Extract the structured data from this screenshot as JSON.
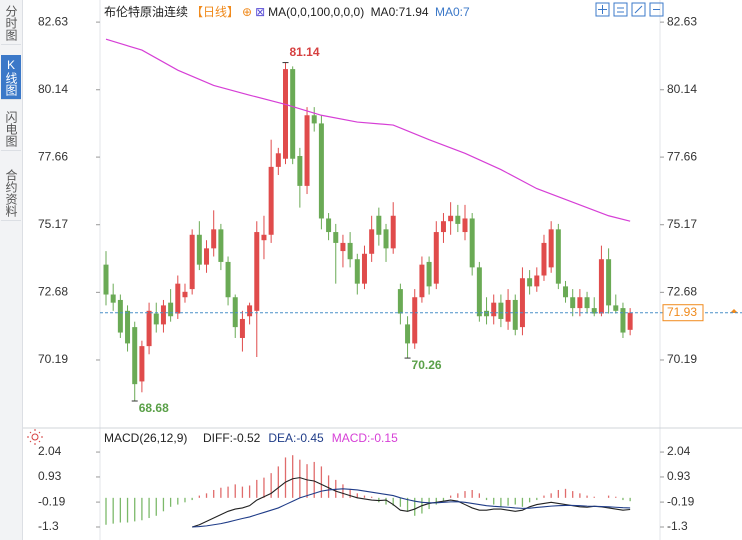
{
  "header": {
    "title": "布伦特原油连续",
    "period": "【日线】",
    "indicator": "MA(0,0,100,0,0,0)",
    "ma_value": "MA0:71.94",
    "ma_extra": "MA0:7"
  },
  "sidebar": {
    "tabs": [
      "分时图",
      "K线图",
      "闪电图",
      "合约资料"
    ]
  },
  "chart_data": [
    {
      "type": "candlestick",
      "up_color": "#e04b4b",
      "down_color": "#6aaa55",
      "open": [
        73.7,
        72.6,
        72.4,
        72.0,
        71.4,
        69.4,
        70.7,
        71.9,
        71.5,
        72.3,
        71.9,
        72.5,
        72.8,
        74.8,
        73.7,
        74.3,
        75.0,
        73.8,
        72.5,
        71.0,
        71.8,
        72.0,
        74.6,
        74.8,
        77.3,
        77.6,
        80.9,
        77.7,
        76.6,
        79.2,
        78.9,
        75.4,
        74.9,
        74.2,
        74.5,
        73.9,
        73.0,
        74.1,
        75.5,
        75.0,
        74.3,
        72.8,
        71.5,
        70.8,
        72.5,
        73.8,
        73.0,
        74.9,
        75.3,
        75.5,
        74.9,
        75.4,
        73.6,
        72.0,
        71.8,
        72.3,
        71.6,
        72.4,
        71.4,
        73.2,
        72.9,
        73.3,
        73.6,
        75.0,
        72.9,
        72.5,
        72.1,
        72.5,
        72.1,
        71.9,
        73.9,
        72.2,
        72.1,
        71.3
      ],
      "high": [
        74.2,
        73.0,
        72.6,
        72.2,
        71.6,
        70.9,
        72.3,
        72.3,
        72.4,
        72.8,
        73.3,
        73.0,
        75.0,
        75.3,
        74.6,
        75.7,
        75.2,
        74.0,
        72.6,
        72.0,
        72.3,
        75.3,
        75.5,
        78.3,
        78.0,
        81.14,
        81.0,
        78.0,
        79.5,
        79.5,
        79.2,
        75.6,
        75.2,
        74.8,
        74.9,
        74.1,
        74.4,
        75.5,
        75.8,
        75.2,
        76.0,
        73.0,
        71.8,
        72.8,
        74.0,
        74.0,
        75.3,
        75.6,
        76.0,
        75.9,
        75.9,
        75.6,
        73.8,
        72.5,
        72.6,
        72.6,
        72.8,
        72.6,
        73.6,
        73.5,
        73.6,
        74.8,
        75.3,
        75.2,
        73.1,
        72.8,
        72.8,
        72.7,
        72.5,
        74.4,
        74.3,
        72.6,
        72.3,
        72.1
      ],
      "low": [
        72.2,
        72.0,
        71.0,
        70.5,
        68.68,
        69.0,
        70.4,
        71.2,
        71.2,
        71.6,
        71.7,
        72.3,
        72.6,
        73.5,
        73.4,
        74.0,
        73.5,
        72.2,
        71.0,
        70.5,
        71.5,
        70.3,
        73.9,
        74.5,
        77.0,
        77.4,
        77.4,
        75.8,
        76.3,
        78.6,
        75.0,
        74.6,
        73.0,
        73.6,
        73.6,
        72.6,
        72.8,
        73.8,
        74.4,
        73.8,
        74.1,
        71.5,
        70.26,
        70.6,
        72.3,
        72.6,
        72.8,
        74.5,
        74.8,
        74.9,
        74.6,
        73.3,
        71.6,
        71.5,
        71.5,
        71.4,
        71.3,
        71.1,
        71.1,
        72.6,
        72.7,
        73.1,
        73.4,
        72.8,
        72.3,
        71.8,
        71.8,
        71.9,
        71.8,
        71.8,
        71.9,
        71.9,
        71.0,
        71.1
      ],
      "close": [
        72.6,
        72.3,
        71.2,
        70.8,
        69.3,
        70.7,
        72.0,
        71.5,
        72.2,
        71.8,
        73.0,
        72.7,
        74.8,
        73.7,
        74.3,
        75.0,
        73.8,
        72.5,
        71.4,
        71.7,
        72.2,
        74.9,
        74.8,
        77.3,
        77.8,
        80.9,
        77.6,
        76.6,
        79.2,
        78.9,
        75.4,
        74.9,
        74.5,
        74.5,
        73.9,
        73.0,
        74.1,
        75.0,
        74.8,
        74.3,
        75.5,
        71.9,
        70.8,
        72.5,
        73.7,
        72.9,
        74.9,
        75.3,
        75.5,
        75.2,
        75.4,
        73.6,
        71.8,
        71.8,
        72.3,
        71.7,
        72.4,
        71.3,
        73.2,
        72.9,
        73.3,
        74.5,
        75.0,
        73.0,
        72.5,
        72.1,
        72.5,
        72.1,
        71.9,
        73.9,
        72.2,
        72.0,
        71.2,
        71.93
      ],
      "ma": {
        "color": "#d63fd6",
        "x": [
          0,
          5,
          10,
          15,
          20,
          25,
          30,
          35,
          40,
          45,
          50,
          55,
          60,
          65,
          70,
          73
        ],
        "values": [
          82.0,
          81.6,
          80.86,
          80.3,
          79.94,
          79.6,
          79.2,
          78.95,
          78.84,
          78.3,
          77.8,
          77.2,
          76.5,
          76.0,
          75.5,
          75.3
        ]
      },
      "ylim": [
        67.98,
        83.26
      ],
      "yticks": [
        82.63,
        80.14,
        77.66,
        75.17,
        72.68,
        70.19
      ],
      "last_price": 71.93,
      "last_color": "#f08a1c",
      "last_line_color": "#4a90c8",
      "annotations": [
        {
          "label": 81.14,
          "x": 25,
          "color": "#d64040"
        },
        {
          "label": 70.26,
          "x": 42,
          "color": "#5aa048"
        },
        {
          "label": 68.68,
          "x": 4,
          "color": "#5aa048"
        }
      ]
    },
    {
      "type": "macd",
      "title": "MACD(26,12,9)",
      "ylim": [
        -1.79,
        2.8
      ],
      "yticks": [
        2.04,
        0.93,
        -0.19,
        -1.3
      ],
      "legend": [
        {
          "text": "DIFF:-0.52",
          "color": "#222222"
        },
        {
          "text": "DEA:-0.45",
          "color": "#1f3c88"
        },
        {
          "text": "MACD:-0.15",
          "color": "#d63fd6"
        }
      ],
      "histogram": {
        "up_color": "#e06b6b",
        "down_color": "#7cb96a",
        "values": [
          -1.2,
          -1.15,
          -1.1,
          -1.1,
          -1.05,
          -1.0,
          -0.9,
          -0.8,
          -0.6,
          -0.4,
          -0.3,
          -0.2,
          -0.1,
          0.1,
          0.2,
          0.35,
          0.45,
          0.5,
          0.6,
          0.5,
          0.55,
          0.8,
          0.9,
          1.1,
          1.4,
          1.8,
          1.9,
          1.7,
          1.5,
          1.6,
          1.4,
          1.0,
          0.8,
          0.6,
          0.4,
          0.2,
          0.1,
          0.05,
          -0.2,
          -0.3,
          -0.35,
          -0.4,
          -0.6,
          -0.8,
          -0.7,
          -0.5,
          -0.3,
          -0.15,
          0.1,
          0.2,
          0.3,
          0.35,
          0.2,
          -0.1,
          -0.3,
          -0.4,
          -0.35,
          -0.3,
          -0.4,
          -0.2,
          -0.1,
          0.1,
          0.2,
          0.35,
          0.4,
          0.3,
          0.2,
          0.1,
          0.05,
          0.0,
          0.1,
          0.05,
          -0.1,
          -0.15
        ]
      },
      "series": [
        {
          "color": "#222222",
          "values": [
            null,
            null,
            null,
            null,
            null,
            null,
            null,
            null,
            null,
            null,
            null,
            null,
            -1.3,
            -1.2,
            -1.05,
            -0.9,
            -0.75,
            -0.6,
            -0.5,
            -0.45,
            -0.35,
            -0.1,
            0.05,
            0.2,
            0.45,
            0.7,
            0.85,
            0.9,
            0.8,
            0.75,
            0.6,
            0.45,
            0.3,
            0.2,
            0.1,
            0.0,
            -0.05,
            -0.1,
            -0.12,
            -0.1,
            -0.3,
            -0.55,
            -0.6,
            -0.5,
            -0.35,
            -0.25,
            -0.2,
            -0.15,
            -0.1,
            -0.15,
            -0.3,
            -0.45,
            -0.55,
            -0.55,
            -0.5,
            -0.5,
            -0.55,
            -0.6,
            -0.55,
            -0.4,
            -0.3,
            -0.25,
            -0.2,
            -0.25,
            -0.3,
            -0.35,
            -0.4,
            -0.42,
            -0.38,
            -0.4,
            -0.45,
            -0.5,
            -0.55,
            -0.52
          ]
        },
        {
          "color": "#1f3c88",
          "values": [
            null,
            null,
            null,
            null,
            null,
            null,
            null,
            null,
            null,
            null,
            null,
            null,
            -1.3,
            -1.28,
            -1.25,
            -1.2,
            -1.15,
            -1.08,
            -1.0,
            -0.92,
            -0.85,
            -0.75,
            -0.65,
            -0.55,
            -0.45,
            -0.3,
            -0.15,
            0.0,
            0.1,
            0.2,
            0.3,
            0.35,
            0.38,
            0.4,
            0.38,
            0.35,
            0.3,
            0.25,
            0.2,
            0.15,
            0.1,
            0.0,
            -0.08,
            -0.15,
            -0.2,
            -0.22,
            -0.22,
            -0.2,
            -0.18,
            -0.17,
            -0.2,
            -0.25,
            -0.3,
            -0.35,
            -0.38,
            -0.4,
            -0.42,
            -0.45,
            -0.47,
            -0.46,
            -0.43,
            -0.4,
            -0.37,
            -0.35,
            -0.34,
            -0.34,
            -0.35,
            -0.37,
            -0.38,
            -0.39,
            -0.4,
            -0.42,
            -0.44,
            -0.45
          ]
        }
      ]
    }
  ]
}
